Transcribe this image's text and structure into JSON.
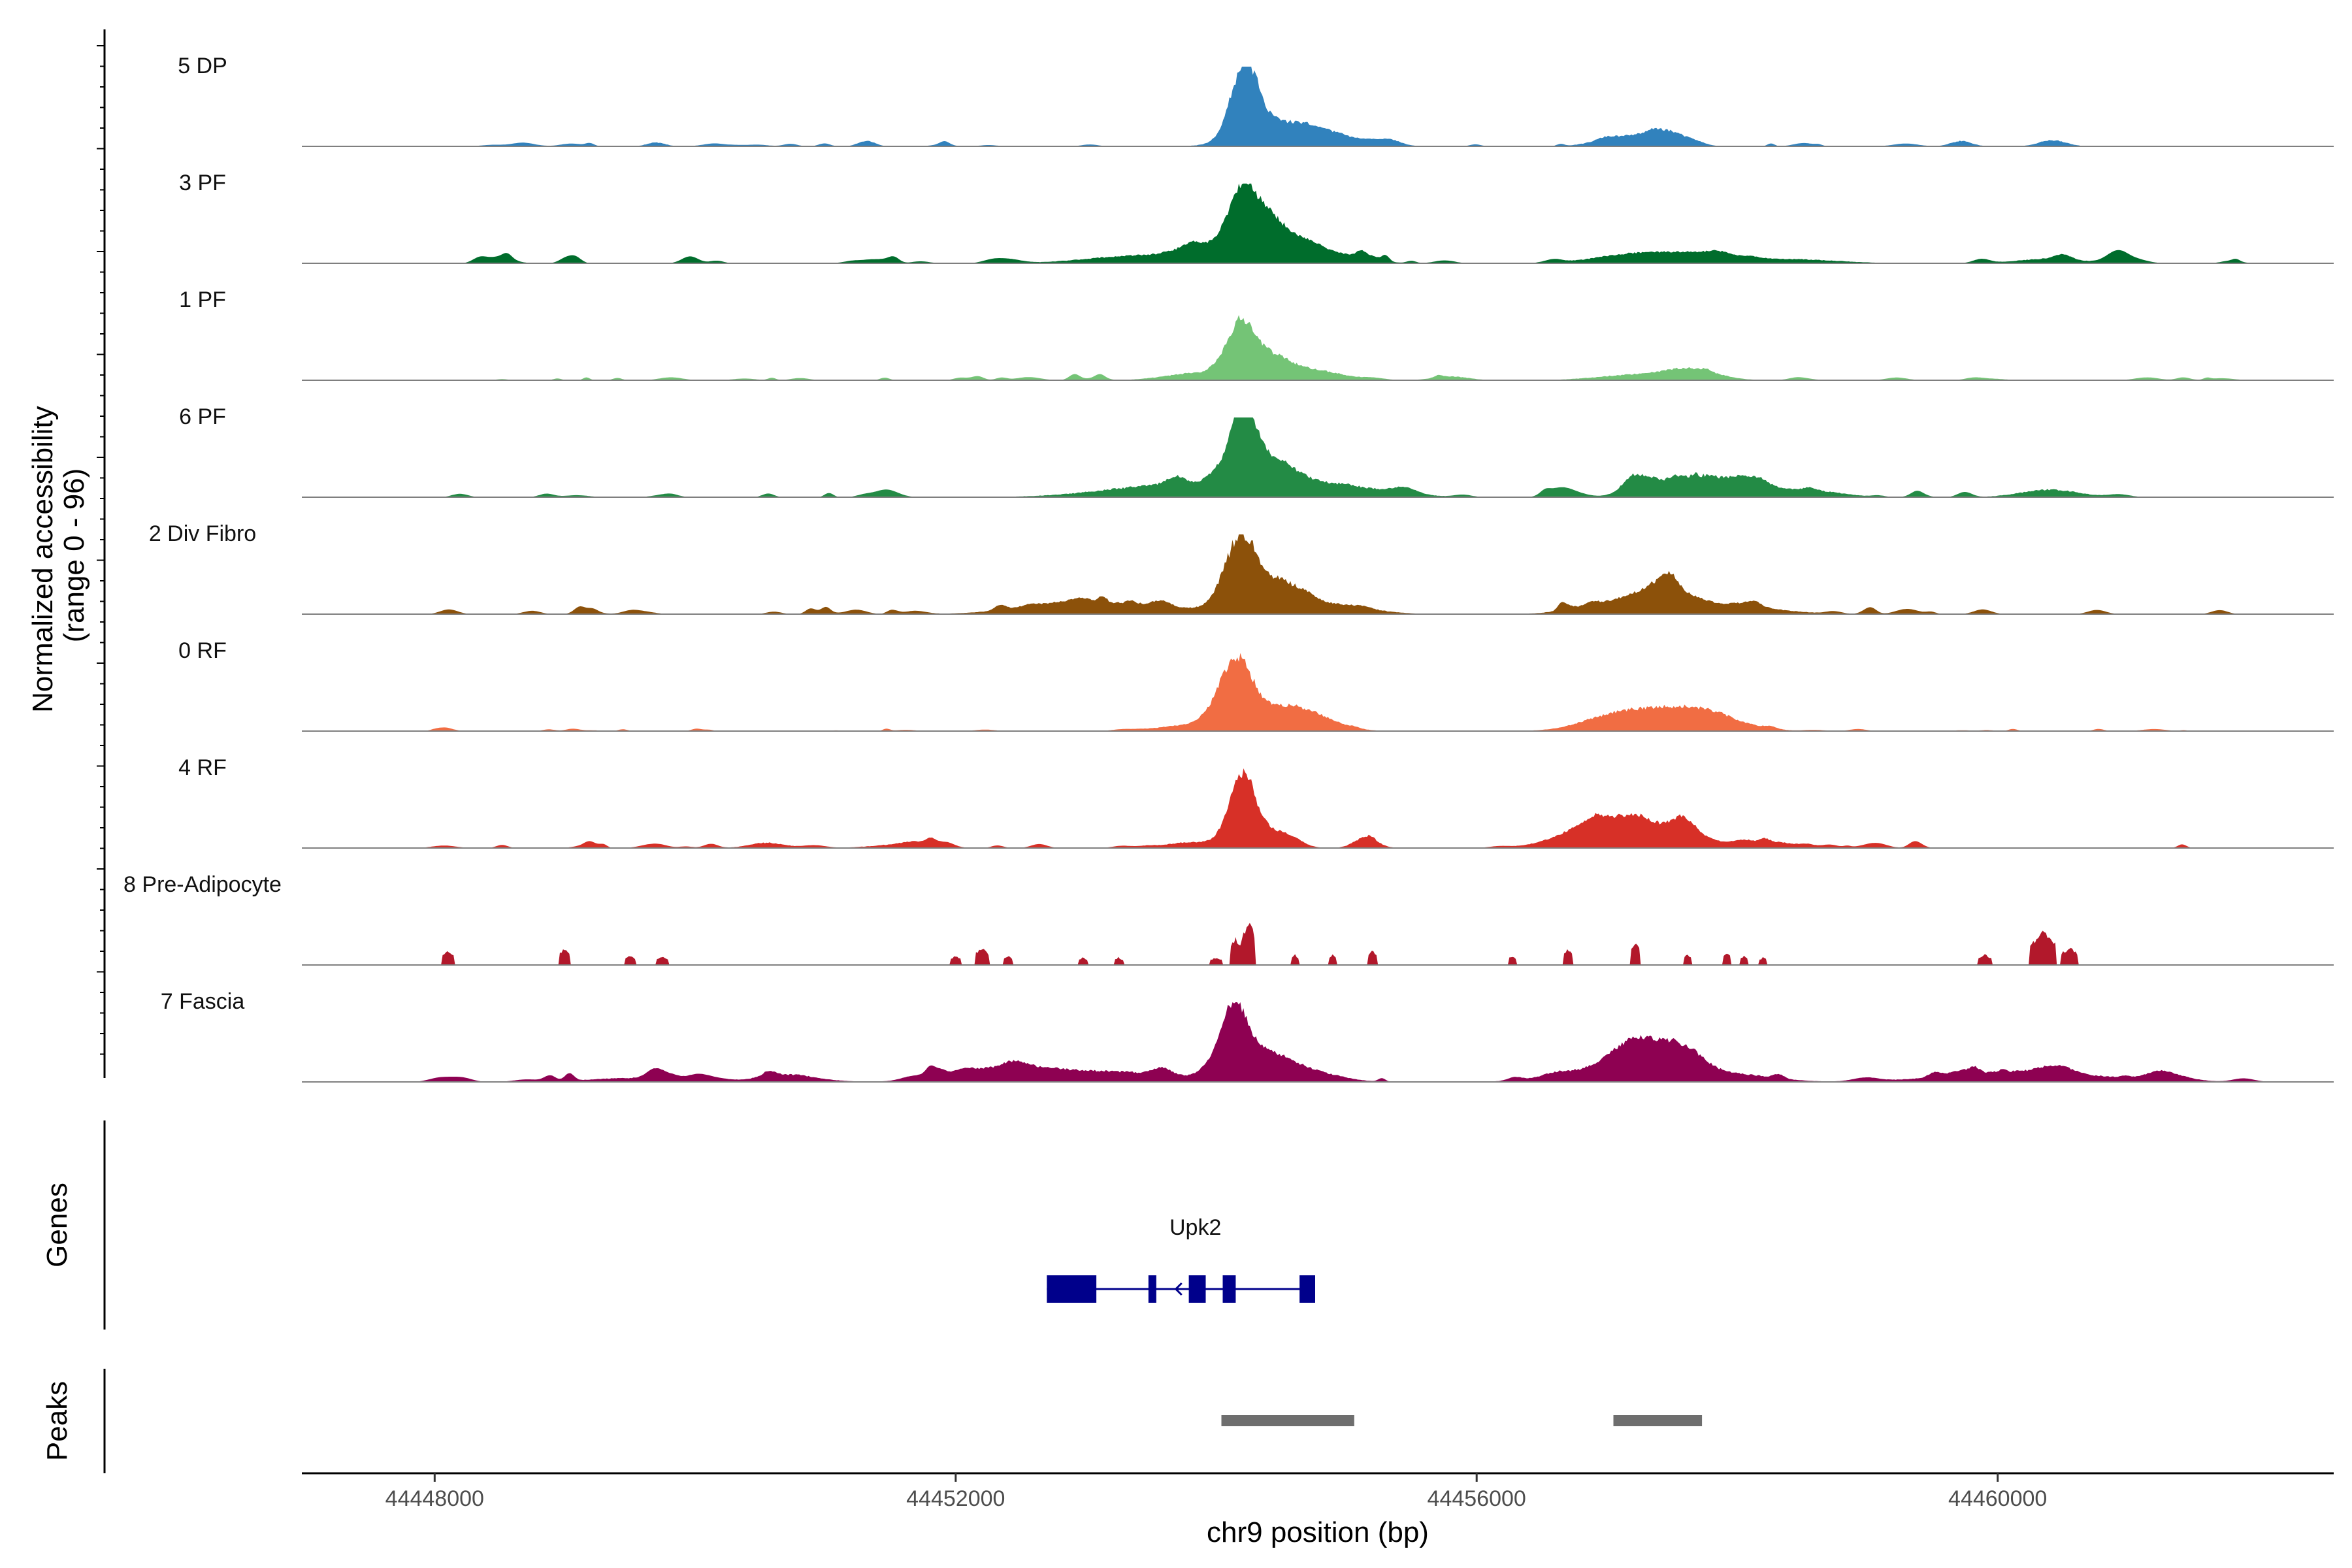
{
  "chart_data": {
    "type": "area",
    "title": "",
    "chromosome": "chr9",
    "xlabel": "chr9 position (bp)",
    "ylabel": "Normalized accessibility\n(range 0 - 96)",
    "ylabel_line1": "Normalized accessibility",
    "ylabel_line2": "(range 0 - 96)",
    "y_range": [
      0,
      96
    ],
    "xlim": [
      44446980,
      44462580
    ],
    "x_ticks": [
      44448000,
      44452000,
      44456000,
      44460000
    ],
    "x_tick_labels": [
      "44448000",
      "44452000",
      "44456000",
      "44460000"
    ],
    "tracks": [
      {
        "name": "5 DP",
        "color": "#3182bd",
        "profile": "smooth",
        "seed": 11,
        "spread": 1.15,
        "peaks": [
          [
            44454220,
            96,
            90
          ],
          [
            44454470,
            28,
            220
          ],
          [
            44454850,
            14,
            200
          ],
          [
            44455320,
            8,
            80
          ],
          [
            44457100,
            12,
            160
          ],
          [
            44457450,
            20,
            130
          ],
          [
            44449700,
            5,
            60
          ],
          [
            44451300,
            6,
            50
          ],
          [
            44459720,
            7,
            70
          ],
          [
            44460420,
            8,
            90
          ]
        ],
        "noise": [
          [
            44448000,
            44462000,
            3,
            26
          ]
        ]
      },
      {
        "name": "3 PF",
        "color": "#006d2c",
        "profile": "smooth",
        "seed": 23,
        "spread": 1.1,
        "peaks": [
          [
            44454200,
            88,
            100
          ],
          [
            44454420,
            38,
            130
          ],
          [
            44454700,
            20,
            260
          ],
          [
            44453880,
            18,
            170
          ],
          [
            44453400,
            10,
            350
          ],
          [
            44457180,
            11,
            260
          ],
          [
            44457700,
            12,
            260
          ],
          [
            44458450,
            5,
            300
          ],
          [
            44460400,
            6,
            220
          ]
        ],
        "noise": [
          [
            44447950,
            44461850,
            5,
            40
          ]
        ]
      },
      {
        "name": "1 PF",
        "color": "#74c476",
        "profile": "smooth",
        "seed": 37,
        "spread": 1.1,
        "peaks": [
          [
            44454180,
            68,
            100
          ],
          [
            44454420,
            30,
            140
          ],
          [
            44454780,
            12,
            180
          ],
          [
            44453800,
            8,
            200
          ],
          [
            44457200,
            7,
            250
          ],
          [
            44457650,
            14,
            180
          ],
          [
            44455800,
            5,
            120
          ]
        ],
        "noise": [
          [
            44448000,
            44461800,
            3,
            34
          ]
        ]
      },
      {
        "name": "6 PF",
        "color": "#238b45",
        "profile": "smooth",
        "seed": 41,
        "spread": 1.1,
        "peaks": [
          [
            44454200,
            96,
            100
          ],
          [
            44454460,
            30,
            140
          ],
          [
            44454800,
            18,
            380
          ],
          [
            44453650,
            16,
            450
          ],
          [
            44457700,
            28,
            230
          ],
          [
            44457250,
            22,
            110
          ],
          [
            44458150,
            14,
            160
          ],
          [
            44458600,
            8,
            200
          ],
          [
            44460400,
            10,
            200
          ]
        ],
        "noise": [
          [
            44448000,
            44461800,
            4,
            36
          ]
        ]
      },
      {
        "name": "2 Div Fibro",
        "color": "#8c510a",
        "profile": "smooth",
        "seed": 53,
        "spread": 1.1,
        "peaks": [
          [
            44454180,
            90,
            110
          ],
          [
            44454480,
            38,
            160
          ],
          [
            44454900,
            12,
            250
          ],
          [
            44453300,
            12,
            500
          ],
          [
            44457450,
            28,
            200
          ],
          [
            44457050,
            14,
            250
          ],
          [
            44458000,
            10,
            300
          ],
          [
            44452800,
            8,
            300
          ]
        ],
        "noise": [
          [
            44448000,
            44461800,
            5,
            44
          ]
        ]
      },
      {
        "name": "0 RF",
        "color": "#f16d43",
        "profile": "smooth",
        "seed": 67,
        "spread": 1.15,
        "peaks": [
          [
            44454150,
            90,
            110
          ],
          [
            44454520,
            30,
            180
          ],
          [
            44454820,
            10,
            160
          ],
          [
            44453800,
            8,
            200
          ],
          [
            44457350,
            22,
            280
          ],
          [
            44457750,
            18,
            240
          ],
          [
            44457000,
            10,
            200
          ]
        ],
        "noise": [
          [
            44448000,
            44461800,
            2,
            30
          ]
        ]
      },
      {
        "name": "4 RF",
        "color": "#d73027",
        "profile": "smooth",
        "seed": 79,
        "spread": 1.1,
        "peaks": [
          [
            44454200,
            96,
            90
          ],
          [
            44454450,
            20,
            120
          ],
          [
            44455150,
            14,
            80
          ],
          [
            44453850,
            8,
            200
          ],
          [
            44457220,
            30,
            320
          ],
          [
            44456900,
            16,
            250
          ],
          [
            44457600,
            18,
            100
          ],
          [
            44458200,
            9,
            200
          ],
          [
            44450550,
            7,
            120
          ],
          [
            44451600,
            5,
            200
          ]
        ],
        "noise": [
          [
            44448000,
            44461800,
            4,
            38
          ]
        ]
      },
      {
        "name": "8 Pre-Adipocyte",
        "color": "#b2182b",
        "profile": "blocky",
        "seed": 97,
        "spread": 1.0,
        "peaks": [
          [
            44448100,
            20,
            90
          ],
          [
            44449000,
            22,
            90
          ],
          [
            44449500,
            12,
            90
          ],
          [
            44449750,
            12,
            90
          ],
          [
            44452000,
            12,
            90
          ],
          [
            44452200,
            22,
            110
          ],
          [
            44452400,
            12,
            70
          ],
          [
            44452980,
            10,
            70
          ],
          [
            44453250,
            10,
            70
          ],
          [
            44454000,
            10,
            90
          ],
          [
            44454150,
            35,
            90
          ],
          [
            44454250,
            55,
            110
          ],
          [
            44454600,
            14,
            60
          ],
          [
            44454900,
            14,
            60
          ],
          [
            44455200,
            18,
            70
          ],
          [
            44456270,
            12,
            60
          ],
          [
            44456700,
            20,
            80
          ],
          [
            44457220,
            32,
            70
          ],
          [
            44457620,
            14,
            60
          ],
          [
            44457920,
            16,
            60
          ],
          [
            44458050,
            12,
            60
          ],
          [
            44458200,
            10,
            60
          ],
          [
            44459900,
            14,
            100
          ],
          [
            44460350,
            42,
            200
          ],
          [
            44460550,
            22,
            140
          ]
        ],
        "noise": []
      },
      {
        "name": "7 Fascia",
        "color": "#8e0152",
        "profile": "smooth",
        "seed": 113,
        "spread": 1.1,
        "peaks": [
          [
            44454140,
            96,
            100
          ],
          [
            44454420,
            28,
            140
          ],
          [
            44454700,
            14,
            200
          ],
          [
            44453100,
            14,
            600
          ],
          [
            44452400,
            14,
            250
          ],
          [
            44457200,
            46,
            160
          ],
          [
            44457550,
            44,
            160
          ],
          [
            44456800,
            14,
            250
          ],
          [
            44458000,
            10,
            250
          ],
          [
            44460200,
            14,
            500
          ],
          [
            44450700,
            10,
            200
          ],
          [
            44449500,
            5,
            300
          ],
          [
            44461300,
            8,
            150
          ]
        ],
        "noise": [
          [
            44448000,
            44461900,
            5,
            40
          ]
        ]
      }
    ],
    "genes": [
      {
        "name": "Upk2",
        "strand": "-",
        "start": 44452700,
        "end": 44454760,
        "exons": [
          [
            44452700,
            44453080
          ],
          [
            44453480,
            44453540
          ],
          [
            44453790,
            44453920
          ],
          [
            44454050,
            44454150
          ],
          [
            44454640,
            44454760
          ]
        ]
      }
    ],
    "peaks_regions": [
      [
        44454040,
        44455060
      ],
      [
        44457050,
        44457730
      ]
    ],
    "panels": {
      "genes_label": "Genes",
      "peaks_label": "Peaks"
    },
    "colors": {
      "gene": "#00008b",
      "peak_bar": "#6e6e6e",
      "baseline": "#7f7f7f",
      "axis": "#000000"
    }
  }
}
